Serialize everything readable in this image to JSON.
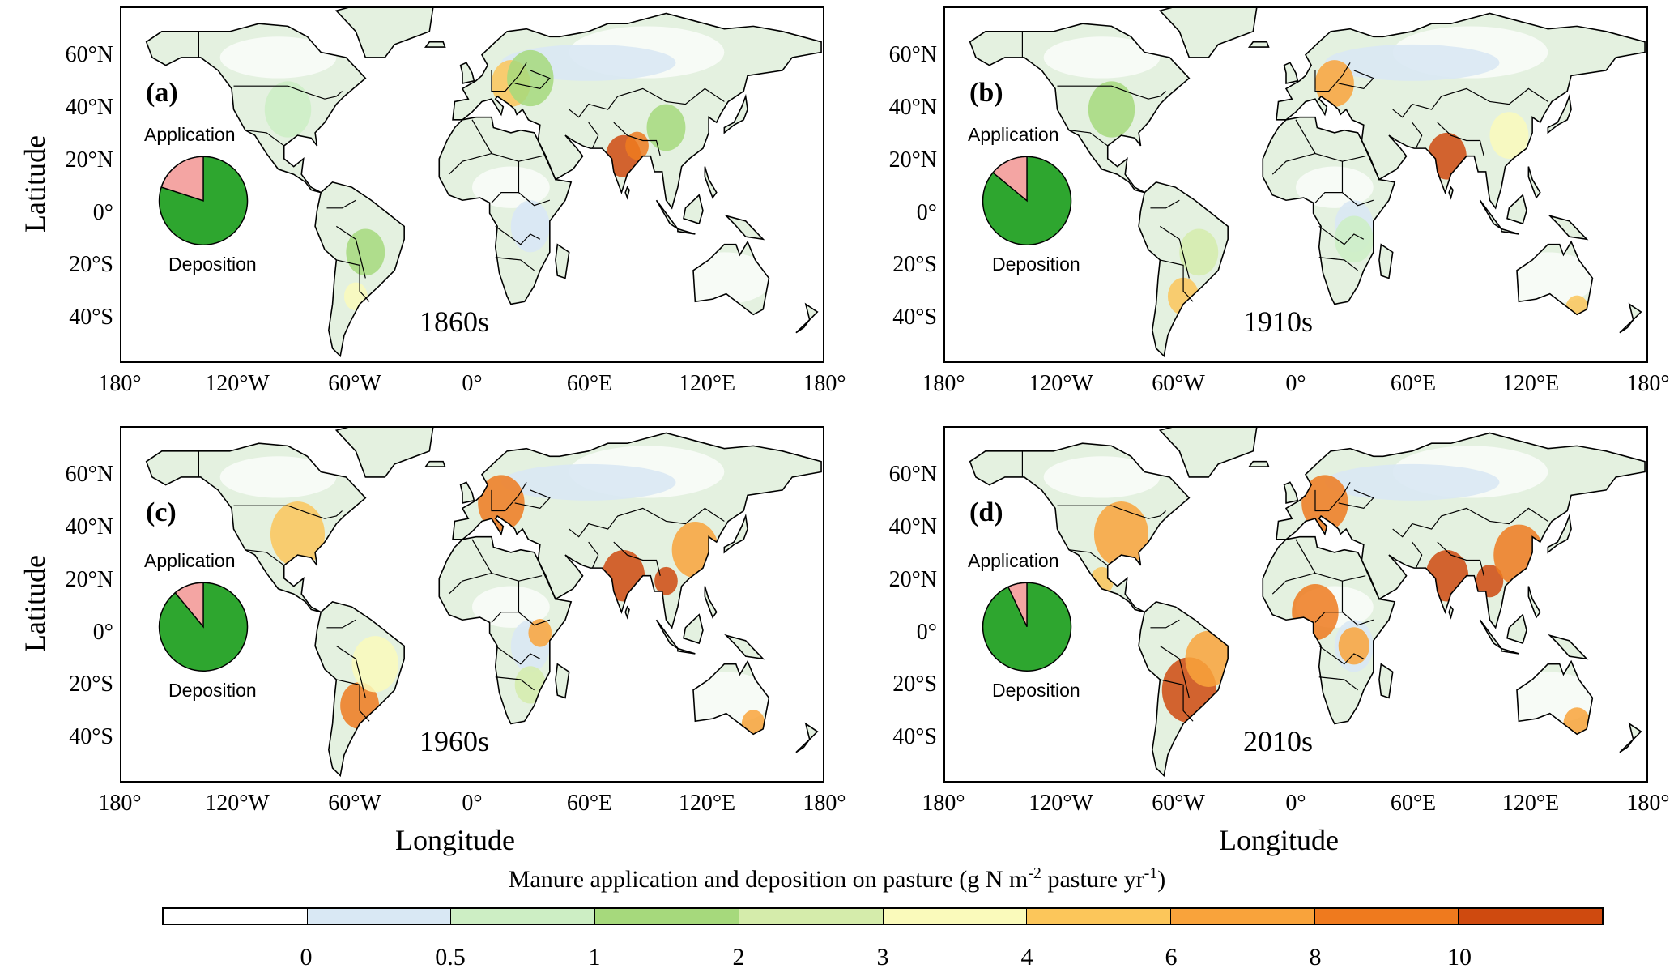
{
  "figure": {
    "xlabel": "Longitude",
    "ylabel": "Latitude",
    "lat_ticks": [
      "60°N",
      "40°N",
      "20°N",
      "0°",
      "20°S",
      "40°S"
    ],
    "lon_ticks": [
      "180°",
      "120°W",
      "60°W",
      "0°",
      "60°E",
      "120°E",
      "180°"
    ],
    "pie_labels": {
      "application": "Application",
      "deposition": "Deposition"
    },
    "pie_colors": {
      "application": "#f4a5a3",
      "deposition": "#2ea62f"
    }
  },
  "panels": [
    {
      "label": "(a)",
      "decade": "1860s",
      "application_fraction": 0.2
    },
    {
      "label": "(b)",
      "decade": "1910s",
      "application_fraction": 0.14
    },
    {
      "label": "(c)",
      "decade": "1960s",
      "application_fraction": 0.11
    },
    {
      "label": "(d)",
      "decade": "2010s",
      "application_fraction": 0.07
    }
  ],
  "colorbar": {
    "title_prefix": "Manure application and deposition on pasture (g N m",
    "title_sup1": "-2",
    "title_mid": " pasture yr",
    "title_sup2": "-1",
    "title_suffix": ")",
    "tick_labels": [
      "0",
      "0.5",
      "1",
      "2",
      "3",
      "4",
      "6",
      "8",
      "10"
    ],
    "colors": [
      "#ffffff",
      "#d9e8f4",
      "#cdeec4",
      "#a6d97c",
      "#d5ecab",
      "#fafabb",
      "#fcc65a",
      "#f9a33b",
      "#ef7a1e",
      "#cf4a0f"
    ]
  }
}
